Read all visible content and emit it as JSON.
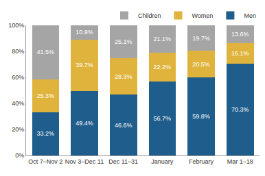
{
  "chart_data": {
    "type": "bar",
    "stacked": true,
    "data_labels": true,
    "grid": false,
    "legend": "top right",
    "categories": [
      "Oct 7–Nov 2",
      "Nov 3–Dec 11",
      "Dec 11–31",
      "January",
      "February",
      "Mar 1–18"
    ],
    "series": [
      {
        "name": "Men",
        "color": "#1f5d8c",
        "values": [
          33.2,
          49.4,
          46.6,
          56.7,
          59.8,
          70.3
        ],
        "value_labels": [
          "33.2%",
          "49.4%",
          "46.6%",
          "56.7%",
          "59.8%",
          "70.3%"
        ]
      },
      {
        "name": "Women",
        "color": "#e0b43c",
        "values": [
          25.3,
          39.7,
          28.3,
          22.2,
          20.5,
          16.1
        ],
        "value_labels": [
          "25.3%",
          "39.7%",
          "28.3%",
          "22.2%",
          "20.5%",
          "16.1%"
        ]
      },
      {
        "name": "Children",
        "color": "#a5a5a5",
        "values": [
          41.5,
          10.9,
          25.1,
          21.1,
          19.7,
          13.6
        ],
        "value_labels": [
          "41.5%",
          "10.9%",
          "25.1%",
          "21.1%",
          "19.7%",
          "13.6%"
        ]
      }
    ],
    "ylim": [
      0,
      100
    ],
    "yticks": [
      {
        "value": 0,
        "label": "0%"
      },
      {
        "value": 20,
        "label": "20%"
      },
      {
        "value": 40,
        "label": "40%"
      },
      {
        "value": 60,
        "label": "60%"
      },
      {
        "value": 80,
        "label": "80%"
      },
      {
        "value": 100,
        "label": "100%"
      }
    ]
  }
}
